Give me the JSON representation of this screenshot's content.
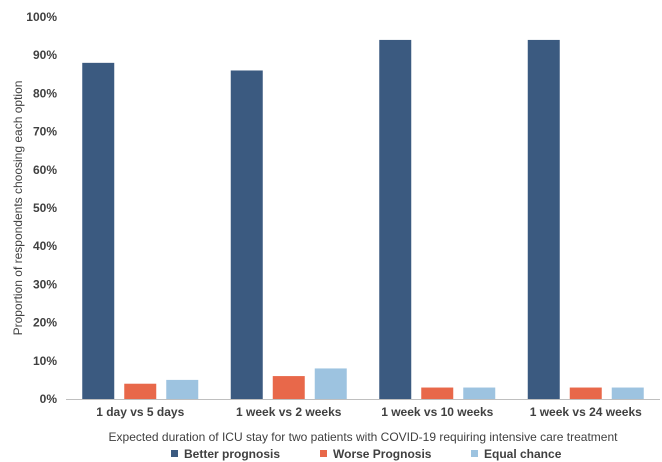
{
  "chart_data": {
    "type": "bar",
    "categories": [
      "1 day vs 5 days",
      "1 week vs 2 weeks",
      "1 week vs 10 weeks",
      "1 week vs 24 weeks"
    ],
    "series": [
      {
        "name": "Better prognosis",
        "values": [
          88,
          86,
          94,
          94
        ],
        "color": "#3b5a80"
      },
      {
        "name": "Worse Prognosis",
        "values": [
          4,
          6,
          3,
          3
        ],
        "color": "#e8684a"
      },
      {
        "name": "Equal chance",
        "values": [
          5,
          8,
          3,
          3
        ],
        "color": "#9dc3e0"
      }
    ],
    "xlabel": "Expected duration of ICU stay for two patients with COVID-19 requiring intensive care treatment",
    "ylabel": "Proportion  of respondents choosing each option",
    "ylim": [
      0,
      100
    ],
    "yticks": [
      0,
      10,
      20,
      30,
      40,
      50,
      60,
      70,
      80,
      90,
      100
    ],
    "ytick_suffix": "%",
    "grid": false,
    "legend": "bottom"
  }
}
